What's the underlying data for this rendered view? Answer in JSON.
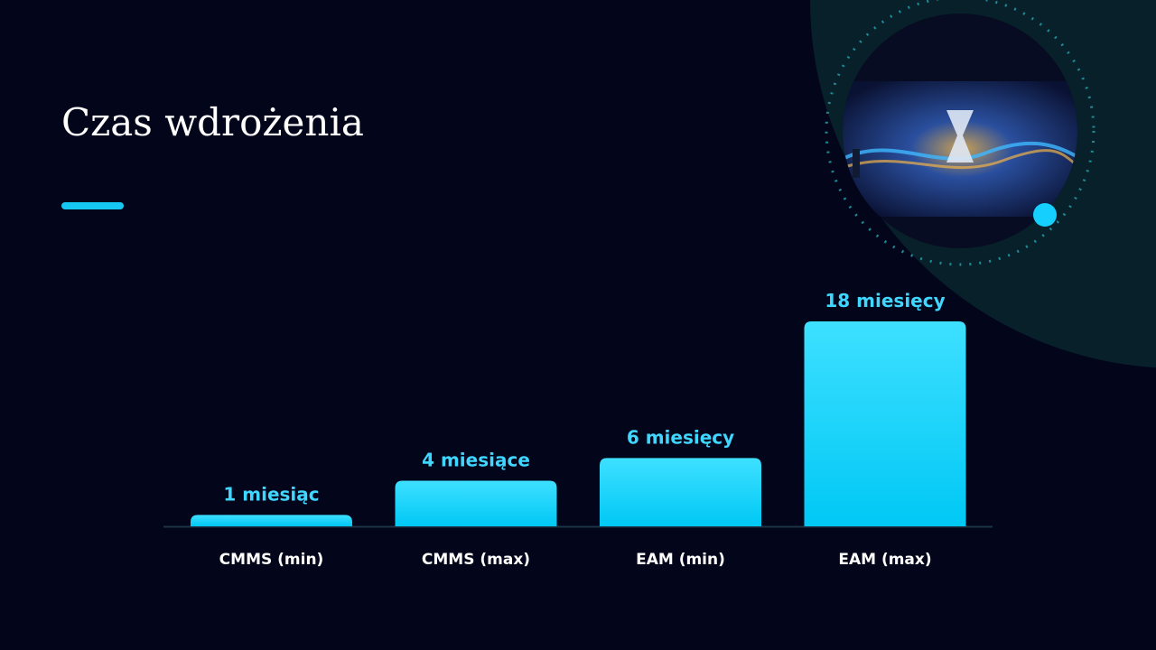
{
  "title": "Czas wdrożenia",
  "chart_data": {
    "type": "bar",
    "categories": [
      "CMMS (min)",
      "CMMS (max)",
      "EAM (min)",
      "EAM (max)"
    ],
    "values": [
      1,
      4,
      6,
      18
    ],
    "value_labels": [
      "1 miesiąc",
      "4 miesiące",
      "6 miesięcy",
      "18 miesięcy"
    ],
    "color": "#1ad4ff"
  }
}
